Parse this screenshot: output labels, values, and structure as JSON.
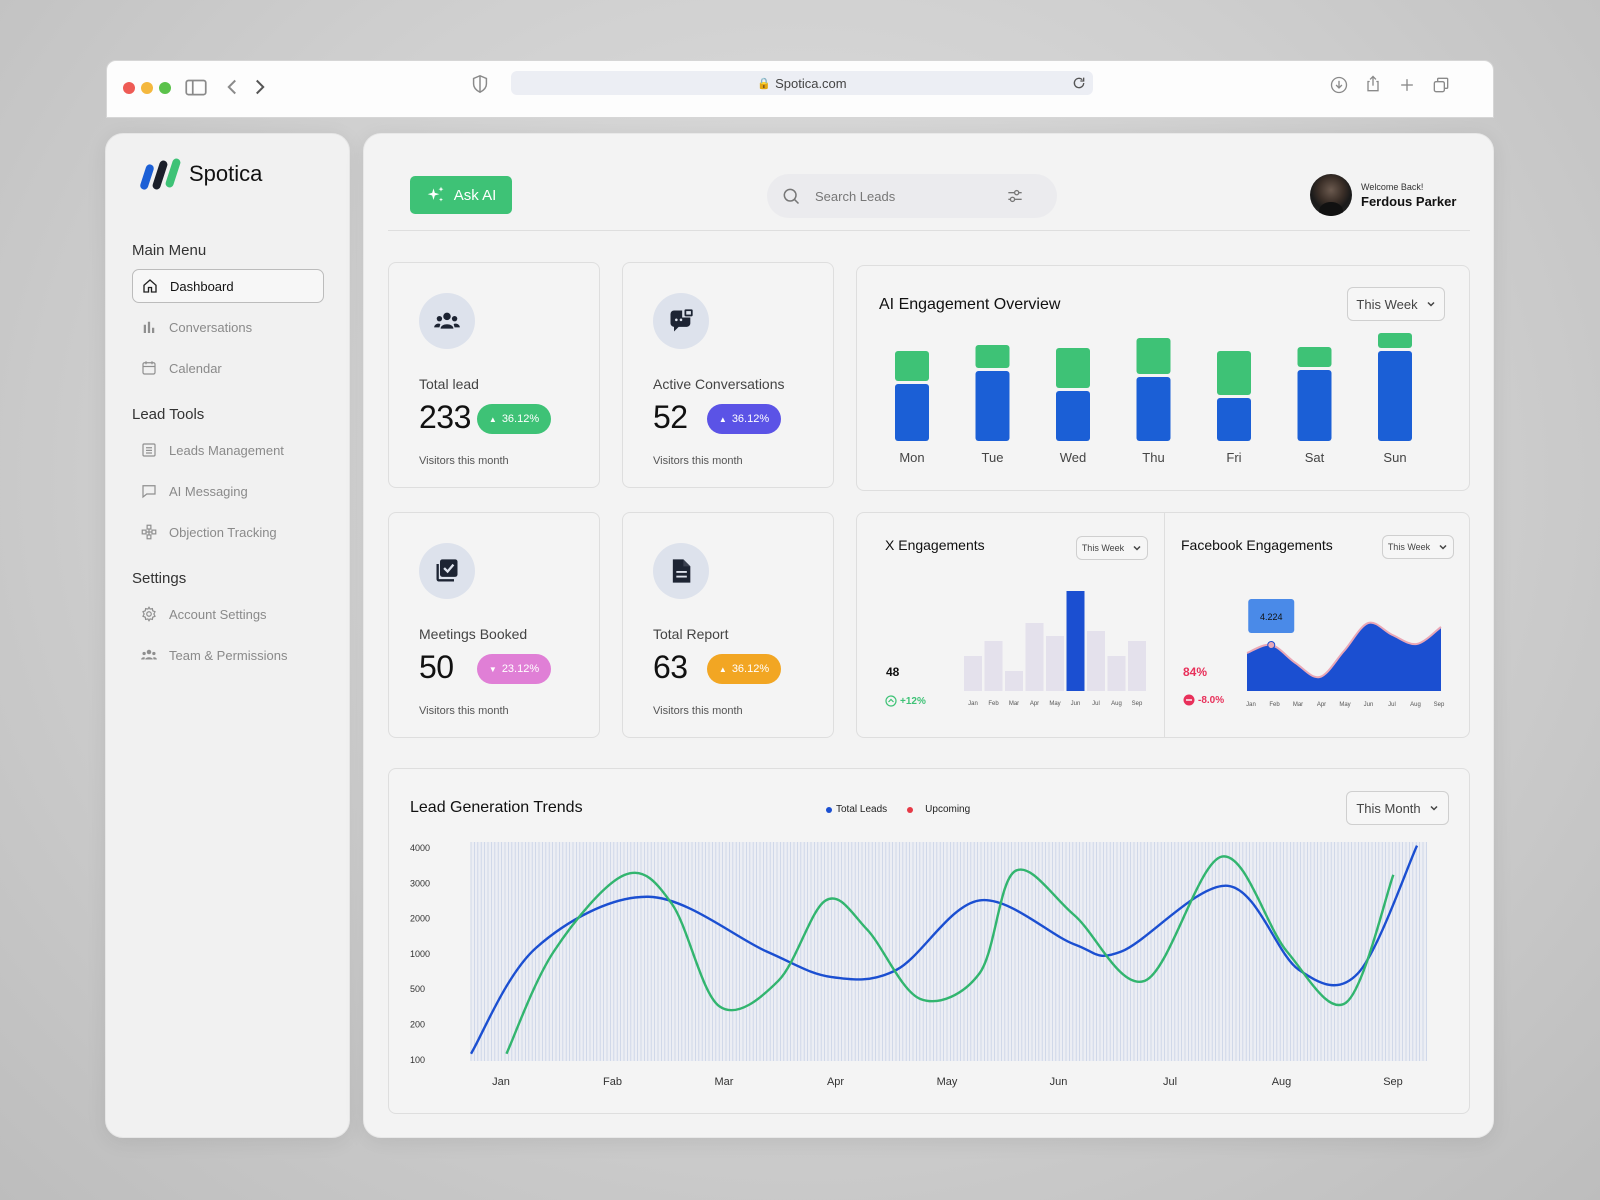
{
  "browser": {
    "url": "Spotica.com"
  },
  "sidebar": {
    "brand": "Spotica",
    "sections": [
      {
        "title": "Main Menu",
        "items": [
          {
            "label": "Dashboard",
            "icon": "home-icon",
            "active": true
          },
          {
            "label": "Conversations",
            "icon": "bar-chart-icon"
          },
          {
            "label": "Calendar",
            "icon": "calendar-icon"
          }
        ]
      },
      {
        "title": "Lead Tools",
        "items": [
          {
            "label": "Leads Management",
            "icon": "list-icon"
          },
          {
            "label": "AI Messaging",
            "icon": "message-icon"
          },
          {
            "label": "Objection Tracking",
            "icon": "network-icon"
          }
        ]
      },
      {
        "title": "Settings",
        "items": [
          {
            "label": "Account Settings",
            "icon": "gear-icon"
          },
          {
            "label": "Team & Permissions",
            "icon": "team-icon"
          }
        ]
      }
    ]
  },
  "header": {
    "ask_ai": "Ask AI",
    "search_placeholder": "Search Leads",
    "welcome": "Welcome Back!",
    "user_name": "Ferdous Parker"
  },
  "stats": [
    {
      "label": "Total lead",
      "value": "233",
      "change": "36.12%",
      "direction": "up",
      "color": "#3ec276",
      "sub": "Visitors this month",
      "icon": "users-icon"
    },
    {
      "label": "Active Conversations",
      "value": "52",
      "change": "36.12%",
      "direction": "up",
      "color": "#5b53e6",
      "sub": "Visitors this month",
      "icon": "chat-icon"
    },
    {
      "label": "Meetings Booked",
      "value": "50",
      "change": "23.12%",
      "direction": "down",
      "color": "#e07fd6",
      "sub": "Visitors this month",
      "icon": "checklist-icon"
    },
    {
      "label": "Total Report",
      "value": "63",
      "change": "36.12%",
      "direction": "up",
      "color": "#f2a623",
      "sub": "Visitors this month",
      "icon": "document-icon"
    }
  ],
  "engagement": {
    "title": "AI Engagement Overview",
    "filter": "This Week",
    "chart_data": {
      "type": "bar",
      "stacked": true,
      "categories": [
        "Mon",
        "Tue",
        "Wed",
        "Thu",
        "Fri",
        "Sat",
        "Sun"
      ],
      "series": [
        {
          "color": "#1b5fd6",
          "values": [
            57,
            70,
            50,
            64,
            43,
            71,
            90
          ]
        },
        {
          "color": "#3ec276",
          "values": [
            30,
            23,
            40,
            36,
            44,
            20,
            15
          ]
        }
      ],
      "ylim": [
        0,
        110
      ]
    }
  },
  "x_engagements": {
    "title": "X Engagements",
    "filter": "This Week",
    "value": "48",
    "change": "+12%",
    "chart_data": {
      "type": "bar",
      "categories": [
        "Jan",
        "Feb",
        "Mar",
        "Apr",
        "May",
        "Jun",
        "Jul",
        "Aug",
        "Sep"
      ],
      "values": [
        35,
        50,
        20,
        68,
        55,
        100,
        60,
        35,
        50
      ],
      "highlight_index": 5,
      "ylim": [
        0,
        100
      ]
    }
  },
  "facebook_engagements": {
    "title": "Facebook Engagements",
    "filter": "This Week",
    "value": "84%",
    "change": "-8.0%",
    "tooltip": "4.224",
    "chart_data": {
      "type": "area",
      "categories": [
        "Jan",
        "Feb",
        "Mar",
        "Apr",
        "May",
        "Jun",
        "Jul",
        "Aug",
        "Sep"
      ],
      "values": [
        38,
        46,
        28,
        14,
        40,
        68,
        56,
        47,
        64
      ],
      "highlight_index": 1,
      "ylim": [
        0,
        100
      ]
    }
  },
  "lead_trends": {
    "title": "Lead Generation Trends",
    "filter": "This Month",
    "chart_data": {
      "type": "line",
      "categories": [
        "Jan",
        "Fab",
        "Mar",
        "Apr",
        "May",
        "Jun",
        "Jul",
        "Aug",
        "Sep"
      ],
      "ytick_labels": [
        "4000",
        "3000",
        "2000",
        "1000",
        "500",
        "200",
        "100"
      ],
      "series": [
        {
          "name": "Total Leads",
          "color": "#1b4fd1",
          "points": [
            [
              0,
              0.2
            ],
            [
              0.55,
              3.1
            ],
            [
              1.5,
              4.5
            ],
            [
              2.5,
              3.0
            ],
            [
              3.05,
              2.3
            ],
            [
              3.6,
              2.5
            ],
            [
              4.3,
              4.4
            ],
            [
              5.1,
              3.2
            ],
            [
              5.5,
              3.0
            ],
            [
              6.4,
              4.8
            ],
            [
              7.0,
              2.5
            ],
            [
              7.5,
              2.4
            ],
            [
              8.0,
              5.9
            ]
          ]
        },
        {
          "name": "Upcoming",
          "color": "#e63946",
          "line_color": "#32b56f",
          "points": [
            [
              0.3,
              0.2
            ],
            [
              0.7,
              3.0
            ],
            [
              1.3,
              5.1
            ],
            [
              1.7,
              4.3
            ],
            [
              2.1,
              1.5
            ],
            [
              2.6,
              2.2
            ],
            [
              3.0,
              4.4
            ],
            [
              3.35,
              3.6
            ],
            [
              3.8,
              1.7
            ],
            [
              4.3,
              2.4
            ],
            [
              4.6,
              5.2
            ],
            [
              5.1,
              4.0
            ],
            [
              5.7,
              2.2
            ],
            [
              6.35,
              5.6
            ],
            [
              6.9,
              3.0
            ],
            [
              7.4,
              1.6
            ],
            [
              7.8,
              5.1
            ]
          ]
        }
      ]
    }
  }
}
